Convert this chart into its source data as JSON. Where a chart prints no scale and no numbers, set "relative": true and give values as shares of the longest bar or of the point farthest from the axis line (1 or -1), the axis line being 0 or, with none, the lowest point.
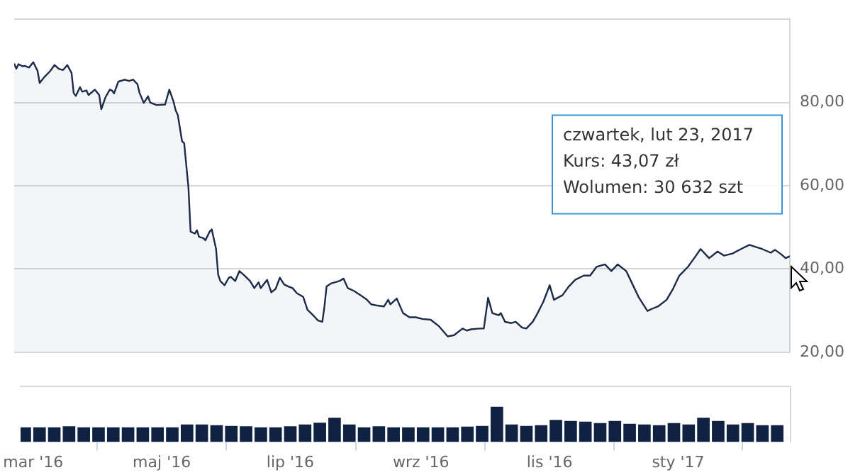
{
  "chart_data": [
    {
      "type": "area",
      "color": "#1c2b4a",
      "x": [
        "2016-02-24",
        "2016-02-25",
        "2016-02-26",
        "2016-02-28",
        "2016-02-29",
        "2016-03-02",
        "2016-03-04",
        "2016-03-06",
        "2016-03-07",
        "2016-03-09",
        "2016-03-12",
        "2016-03-14",
        "2016-03-16",
        "2016-03-18",
        "2016-03-20",
        "2016-03-22",
        "2016-03-23",
        "2016-03-24",
        "2016-03-26",
        "2016-03-27",
        "2016-03-29",
        "2016-03-30",
        "2016-04-02",
        "2016-04-04",
        "2016-04-05",
        "2016-04-07",
        "2016-04-09",
        "2016-04-10",
        "2016-04-11",
        "2016-04-13",
        "2016-04-16",
        "2016-04-18",
        "2016-04-20",
        "2016-04-22",
        "2016-04-23",
        "2016-04-25",
        "2016-04-27",
        "2016-04-28",
        "2016-05-01",
        "2016-05-05",
        "2016-05-07",
        "2016-05-09",
        "2016-05-10",
        "2016-05-11",
        "2016-05-13",
        "2016-05-14",
        "2016-05-16",
        "2016-05-17",
        "2016-05-19",
        "2016-05-20",
        "2016-05-21",
        "2016-05-23",
        "2016-05-24",
        "2016-05-26",
        "2016-05-27",
        "2016-05-29",
        "2016-05-30",
        "2016-05-31",
        "2016-06-02",
        "2016-06-04",
        "2016-06-05",
        "2016-06-07",
        "2016-06-09",
        "2016-06-11",
        "2016-06-14",
        "2016-06-16",
        "2016-06-18",
        "2016-06-19",
        "2016-06-22",
        "2016-06-24",
        "2016-06-26",
        "2016-06-28",
        "2016-06-30",
        "2016-07-02",
        "2016-07-04",
        "2016-07-06",
        "2016-07-09",
        "2016-07-11",
        "2016-07-14",
        "2016-07-16",
        "2016-07-18",
        "2016-07-19",
        "2016-07-20",
        "2016-07-22",
        "2016-07-24",
        "2016-07-26",
        "2016-07-28",
        "2016-07-30",
        "2016-08-02",
        "2016-08-05",
        "2016-08-08",
        "2016-08-10",
        "2016-08-13",
        "2016-08-16",
        "2016-08-18",
        "2016-08-19",
        "2016-08-22",
        "2016-08-25",
        "2016-08-28",
        "2016-08-31",
        "2016-09-03",
        "2016-09-07",
        "2016-09-11",
        "2016-09-15",
        "2016-09-18",
        "2016-09-22",
        "2016-09-24",
        "2016-09-26",
        "2016-09-30",
        "2016-10-02",
        "2016-10-04",
        "2016-10-06",
        "2016-10-09",
        "2016-10-10",
        "2016-10-12",
        "2016-10-15",
        "2016-10-17",
        "2016-10-20",
        "2016-10-22",
        "2016-10-25",
        "2016-10-27",
        "2016-10-30",
        "2016-11-02",
        "2016-11-04",
        "2016-11-08",
        "2016-11-11",
        "2016-11-14",
        "2016-11-18",
        "2016-11-21",
        "2016-11-24",
        "2016-11-28",
        "2016-12-01",
        "2016-12-04",
        "2016-12-08",
        "2016-12-11",
        "2016-12-14",
        "2016-12-18",
        "2016-12-20",
        "2016-12-23",
        "2016-12-27",
        "2016-12-30",
        "2017-01-02",
        "2017-01-06",
        "2017-01-09",
        "2017-01-12",
        "2017-01-16",
        "2017-01-20",
        "2017-01-23",
        "2017-01-27",
        "2017-01-31",
        "2017-02-04",
        "2017-02-07",
        "2017-02-10",
        "2017-02-14",
        "2017-02-16",
        "2017-02-19",
        "2017-02-21",
        "2017-02-23"
      ],
      "values": [
        89.4,
        88.1,
        89.2,
        88.7,
        88.8,
        88.4,
        89.7,
        87.6,
        84.7,
        86.0,
        87.6,
        89.0,
        88.1,
        87.8,
        89.0,
        87.1,
        82.3,
        81.6,
        83.7,
        82.6,
        82.9,
        81.8,
        83.1,
        81.8,
        78.4,
        81.3,
        83.1,
        82.9,
        82.2,
        85.0,
        85.5,
        85.2,
        85.5,
        84.4,
        82.3,
        79.9,
        81.5,
        80.0,
        79.4,
        79.5,
        83.1,
        80.2,
        78.1,
        77.0,
        70.7,
        70.2,
        59.6,
        49.0,
        48.5,
        49.3,
        47.7,
        47.4,
        46.9,
        49.0,
        49.5,
        44.8,
        38.6,
        37.1,
        36.1,
        37.9,
        38.1,
        37.1,
        39.5,
        38.6,
        37.1,
        35.4,
        36.8,
        35.4,
        37.4,
        34.4,
        35.2,
        37.9,
        36.3,
        35.8,
        35.4,
        34.2,
        33.3,
        30.2,
        28.7,
        27.6,
        27.3,
        31.0,
        35.8,
        36.5,
        36.8,
        37.1,
        37.7,
        35.4,
        34.7,
        33.7,
        32.6,
        31.5,
        31.2,
        31.0,
        32.6,
        31.5,
        32.9,
        29.4,
        28.4,
        28.4,
        28.0,
        27.8,
        26.2,
        23.8,
        24.1,
        25.7,
        25.2,
        25.5,
        25.7,
        25.7,
        33.1,
        29.4,
        28.9,
        29.4,
        27.3,
        27.0,
        27.3,
        25.9,
        25.7,
        27.3,
        29.1,
        32.1,
        36.1,
        32.6,
        33.7,
        35.8,
        37.4,
        38.4,
        38.4,
        40.5,
        41.1,
        39.5,
        41.1,
        39.5,
        36.3,
        33.1,
        29.9,
        30.4,
        31.0,
        32.6,
        35.2,
        38.4,
        40.5,
        42.6,
        44.8,
        42.6,
        44.2,
        43.2,
        43.7,
        44.8,
        45.8,
        45.3,
        44.8,
        43.9,
        44.6,
        43.5,
        42.6,
        43.07
      ],
      "xlim": [
        "2016-02-24",
        "2017-02-23"
      ],
      "ylim": [
        20,
        100
      ],
      "yticks": [
        {
          "value": 20,
          "label": "20,00"
        },
        {
          "value": 40,
          "label": "40,00"
        },
        {
          "value": 60,
          "label": "60,00"
        },
        {
          "value": 80,
          "label": "80,00"
        },
        {
          "value": 100,
          "label": null
        }
      ],
      "grid": "y",
      "tick_labels": "y",
      "annotations": [
        "czwartek, lut 23, 2017",
        "Kurs:\t43,07 zł",
        "Wolumen:\t30 632 szt"
      ]
    },
    {
      "type": "bar",
      "color": "#0f2242",
      "relative": true,
      "tick_labels": "x",
      "x": [
        "2016-02-26",
        "2016-03-04",
        "2016-03-11",
        "2016-03-18",
        "2016-03-25",
        "2016-04-01",
        "2016-04-08",
        "2016-04-15",
        "2016-04-22",
        "2016-04-29",
        "2016-05-06",
        "2016-05-13",
        "2016-05-20",
        "2016-05-27",
        "2016-06-03",
        "2016-06-10",
        "2016-06-17",
        "2016-06-24",
        "2016-07-01",
        "2016-07-08",
        "2016-07-15",
        "2016-07-22",
        "2016-07-29",
        "2016-08-05",
        "2016-08-12",
        "2016-08-19",
        "2016-08-26",
        "2016-09-02",
        "2016-09-09",
        "2016-09-16",
        "2016-09-23",
        "2016-09-30",
        "2016-10-07",
        "2016-10-14",
        "2016-10-21",
        "2016-10-28",
        "2016-11-04",
        "2016-11-11",
        "2016-11-18",
        "2016-11-25",
        "2016-12-02",
        "2016-12-09",
        "2016-12-16",
        "2016-12-23",
        "2016-12-30",
        "2017-01-06",
        "2017-01-13",
        "2017-01-20",
        "2017-01-27",
        "2017-02-03",
        "2017-02-10",
        "2017-02-17"
      ],
      "values": [
        0.42,
        0.42,
        0.42,
        0.45,
        0.42,
        0.42,
        0.42,
        0.42,
        0.42,
        0.42,
        0.42,
        0.5,
        0.5,
        0.48,
        0.46,
        0.45,
        0.42,
        0.42,
        0.45,
        0.5,
        0.55,
        0.69,
        0.5,
        0.42,
        0.45,
        0.42,
        0.42,
        0.42,
        0.42,
        0.42,
        0.44,
        0.46,
        1,
        0.5,
        0.46,
        0.48,
        0.63,
        0.6,
        0.58,
        0.54,
        0.6,
        0.52,
        0.5,
        0.48,
        0.54,
        0.5,
        0.69,
        0.6,
        0.5,
        0.54,
        0.48,
        0.48
      ],
      "xlim": [
        "2016-02-24",
        "2017-02-23"
      ],
      "xticks": [
        {
          "value": "2016-03-01",
          "label": "mar '16"
        },
        {
          "value": "2016-05-01",
          "label": "maj '16"
        },
        {
          "value": "2016-07-01",
          "label": "lip '16"
        },
        {
          "value": "2016-09-01",
          "label": "wrz '16"
        },
        {
          "value": "2016-11-01",
          "label": "lis '16"
        },
        {
          "value": "2017-01-01",
          "label": "sty '17"
        }
      ]
    }
  ]
}
